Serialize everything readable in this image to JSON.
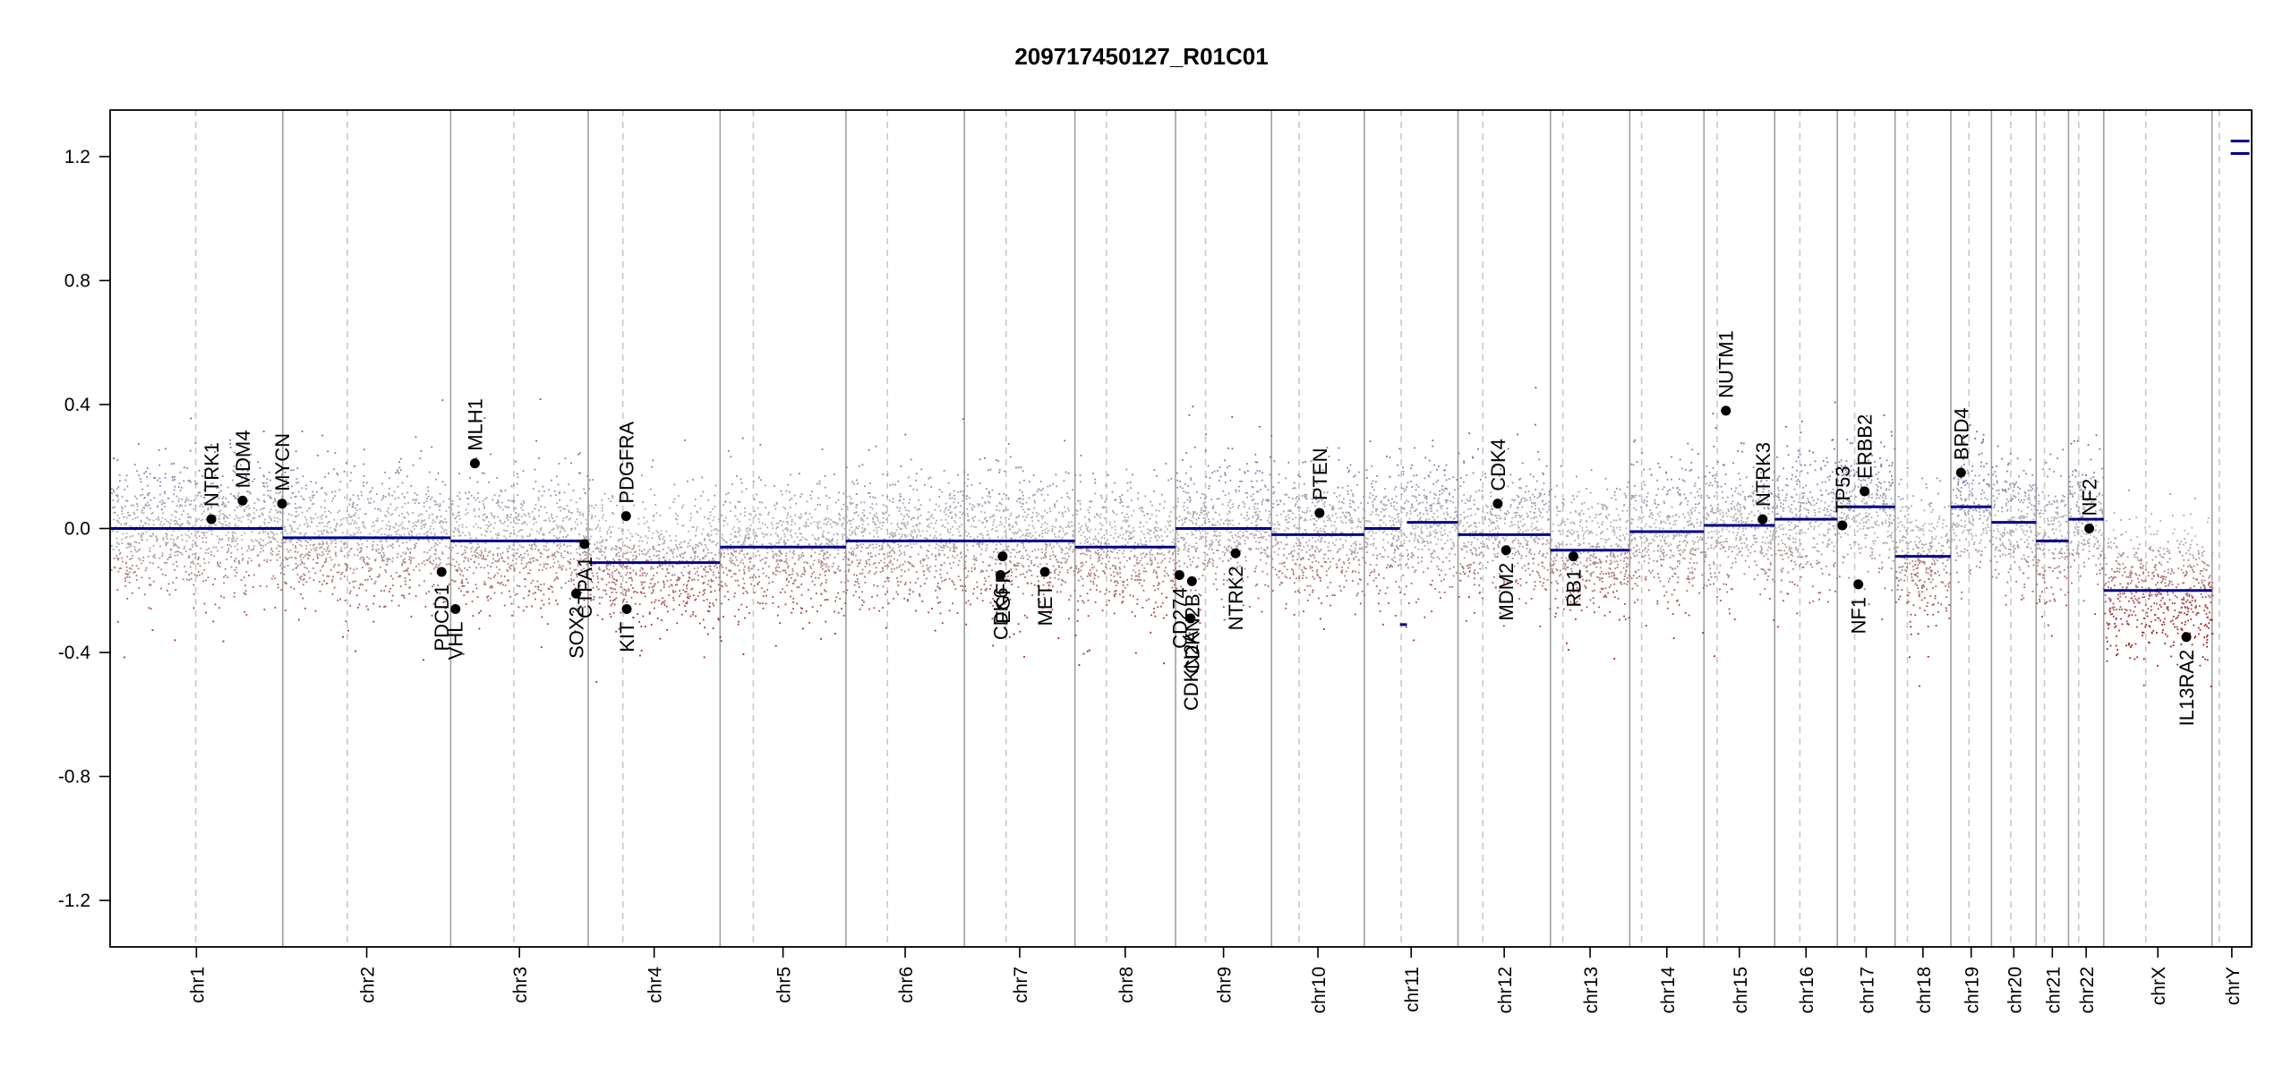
{
  "chart_data": {
    "type": "scatter",
    "title": "209717450127_R01C01",
    "xlabel": "",
    "ylabel": "",
    "ylim": [
      -1.35,
      1.35
    ],
    "yticks": [
      -1.2,
      -0.8,
      -0.4,
      0.0,
      0.4,
      0.8,
      1.2
    ],
    "ytick_labels": [
      "-1.2",
      "-0.8",
      "-0.4",
      "0.0",
      "0.4",
      "0.8",
      "1.2"
    ],
    "grid": false,
    "colors": {
      "segment": "#00008b",
      "gain": "#5a5aa8",
      "neutral": "#b4b4b4",
      "loss": "#a01e1e",
      "chrom_boundary": "#a0a0a0",
      "centromere": "#c8c8c8"
    },
    "chromosomes": [
      {
        "name": "chr1",
        "start": 0.0,
        "end": 248.9,
        "centromere": 123.4
      },
      {
        "name": "chr2",
        "start": 248.9,
        "end": 491.1,
        "centromere": 342.1
      },
      {
        "name": "chr3",
        "start": 491.1,
        "end": 689.4,
        "centromere": 582.1
      },
      {
        "name": "chr4",
        "start": 689.4,
        "end": 879.6,
        "centromere": 739.4
      },
      {
        "name": "chr5",
        "start": 879.6,
        "end": 1061.1,
        "centromere": 927.5
      },
      {
        "name": "chr6",
        "start": 1061.1,
        "end": 1231.9,
        "centromere": 1120.9
      },
      {
        "name": "chr7",
        "start": 1231.9,
        "end": 1391.3,
        "centromere": 1292.0
      },
      {
        "name": "chr8",
        "start": 1391.3,
        "end": 1536.4,
        "centromere": 1436.8
      },
      {
        "name": "chr9",
        "start": 1536.4,
        "end": 1674.8,
        "centromere": 1579.6
      },
      {
        "name": "chr10",
        "start": 1674.8,
        "end": 1808.6,
        "centromere": 1714.6
      },
      {
        "name": "chr11",
        "start": 1808.6,
        "end": 1943.7,
        "centromere": 1861.8
      },
      {
        "name": "chr12",
        "start": 1943.7,
        "end": 2077.0,
        "centromere": 1979.5
      },
      {
        "name": "chr13",
        "start": 2077.0,
        "end": 2191.4,
        "centromere": 2094.9
      },
      {
        "name": "chr14",
        "start": 2191.4,
        "end": 2298.4,
        "centromere": 2208.5
      },
      {
        "name": "chr15",
        "start": 2298.4,
        "end": 2400.4,
        "centromere": 2317.4
      },
      {
        "name": "chr16",
        "start": 2400.4,
        "end": 2490.7,
        "centromere": 2436.7
      },
      {
        "name": "chr17",
        "start": 2490.7,
        "end": 2574.0,
        "centromere": 2515.7
      },
      {
        "name": "chr18",
        "start": 2574.0,
        "end": 2654.4,
        "centromere": 2591.8
      },
      {
        "name": "chr19",
        "start": 2654.4,
        "end": 2713.0,
        "centromere": 2680.6
      },
      {
        "name": "chr20",
        "start": 2713.0,
        "end": 2777.4,
        "centromere": 2740.9
      },
      {
        "name": "chr21",
        "start": 2777.4,
        "end": 2824.1,
        "centromere": 2789.4
      },
      {
        "name": "chr22",
        "start": 2824.1,
        "end": 2874.9,
        "centromere": 2838.8
      },
      {
        "name": "chrX",
        "start": 2874.9,
        "end": 3031.0,
        "centromere": 2935.5
      },
      {
        "name": "chrY",
        "start": 3031.0,
        "end": 3088.2,
        "centromere": 3041.5
      }
    ],
    "segments": [
      {
        "chr": "chr1",
        "start": 0.0,
        "end": 248.9,
        "value": 0.0
      },
      {
        "chr": "chr2",
        "start": 248.9,
        "end": 491.1,
        "value": -0.03
      },
      {
        "chr": "chr3",
        "start": 491.1,
        "end": 689.4,
        "value": -0.04
      },
      {
        "chr": "chr4",
        "start": 689.4,
        "end": 690.4,
        "value": -0.06
      },
      {
        "chr": "chr4",
        "start": 690.4,
        "end": 879.6,
        "value": -0.11
      },
      {
        "chr": "chr5",
        "start": 879.6,
        "end": 1061.1,
        "value": -0.06
      },
      {
        "chr": "chr6",
        "start": 1061.1,
        "end": 1231.9,
        "value": -0.04
      },
      {
        "chr": "chr7",
        "start": 1231.9,
        "end": 1391.3,
        "value": -0.04
      },
      {
        "chr": "chr8",
        "start": 1391.3,
        "end": 1536.4,
        "value": -0.06
      },
      {
        "chr": "chr9",
        "start": 1536.4,
        "end": 1674.8,
        "value": 0.0
      },
      {
        "chr": "chr10",
        "start": 1674.8,
        "end": 1808.6,
        "value": -0.02
      },
      {
        "chr": "chr11",
        "start": 1808.6,
        "end": 1860.0,
        "value": 0.0
      },
      {
        "chr": "chr11",
        "start": 1860.0,
        "end": 1870.0,
        "value": -0.31
      },
      {
        "chr": "chr11",
        "start": 1870.0,
        "end": 1943.7,
        "value": 0.02
      },
      {
        "chr": "chr12",
        "start": 1943.7,
        "end": 2077.0,
        "value": -0.02
      },
      {
        "chr": "chr13",
        "start": 2077.0,
        "end": 2191.4,
        "value": -0.07
      },
      {
        "chr": "chr14",
        "start": 2191.4,
        "end": 2298.4,
        "value": -0.01
      },
      {
        "chr": "chr15",
        "start": 2298.4,
        "end": 2400.4,
        "value": 0.01
      },
      {
        "chr": "chr16",
        "start": 2400.4,
        "end": 2490.7,
        "value": 0.03
      },
      {
        "chr": "chr17",
        "start": 2490.7,
        "end": 2574.0,
        "value": 0.07
      },
      {
        "chr": "chr18",
        "start": 2574.0,
        "end": 2654.4,
        "value": -0.09
      },
      {
        "chr": "chr19",
        "start": 2654.4,
        "end": 2713.0,
        "value": 0.07
      },
      {
        "chr": "chr20",
        "start": 2713.0,
        "end": 2777.4,
        "value": 0.02
      },
      {
        "chr": "chr21",
        "start": 2777.4,
        "end": 2824.1,
        "value": -0.04
      },
      {
        "chr": "chr22",
        "start": 2824.1,
        "end": 2874.9,
        "value": 0.03
      },
      {
        "chr": "chrX",
        "start": 2874.9,
        "end": 3031.0,
        "value": -0.2
      },
      {
        "chr": "chrY",
        "start": 3058.0,
        "end": 3085.0,
        "value": 1.21
      },
      {
        "chr": "chrY",
        "start": 3058.0,
        "end": 3085.0,
        "value": 1.25
      }
    ],
    "genes": [
      {
        "name": "NTRK1",
        "pos": 146.0,
        "value": 0.03,
        "label_side": "above"
      },
      {
        "name": "MDM4",
        "pos": 191.0,
        "value": 0.09,
        "label_side": "above"
      },
      {
        "name": "MYCN",
        "pos": 248.0,
        "value": 0.08,
        "label_side": "above"
      },
      {
        "name": "PDCD1",
        "pos": 478.0,
        "value": -0.14,
        "label_side": "below"
      },
      {
        "name": "VHL",
        "pos": 498.0,
        "value": -0.26,
        "label_side": "below"
      },
      {
        "name": "MLH1",
        "pos": 526.0,
        "value": 0.21,
        "label_side": "above"
      },
      {
        "name": "SOX2",
        "pos": 672.0,
        "value": -0.21,
        "label_side": "below"
      },
      {
        "name": "CTPA1",
        "pos": 684.0,
        "value": -0.05,
        "label_side": "below"
      },
      {
        "name": "PDGFRA",
        "pos": 744.0,
        "value": 0.04,
        "label_side": "above"
      },
      {
        "name": "KIT",
        "pos": 745.0,
        "value": -0.26,
        "label_side": "below"
      },
      {
        "name": "EGFR",
        "pos": 1287.0,
        "value": -0.09,
        "label_side": "below"
      },
      {
        "name": "CDK6",
        "pos": 1284.0,
        "value": -0.15,
        "label_side": "below"
      },
      {
        "name": "MET",
        "pos": 1348.0,
        "value": -0.14,
        "label_side": "below"
      },
      {
        "name": "CD274",
        "pos": 1542.0,
        "value": -0.15,
        "label_side": "below"
      },
      {
        "name": "CDKN2A",
        "pos": 1558.0,
        "value": -0.29,
        "label_side": "below"
      },
      {
        "name": "CDKN2B",
        "pos": 1560.0,
        "value": -0.17,
        "label_side": "below"
      },
      {
        "name": "NTRK2",
        "pos": 1623.0,
        "value": -0.08,
        "label_side": "below"
      },
      {
        "name": "PTEN",
        "pos": 1744.0,
        "value": 0.05,
        "label_side": "above"
      },
      {
        "name": "CDK4",
        "pos": 2001.0,
        "value": 0.08,
        "label_side": "above"
      },
      {
        "name": "MDM2",
        "pos": 2013.0,
        "value": -0.07,
        "label_side": "below"
      },
      {
        "name": "RB1",
        "pos": 2110.0,
        "value": -0.09,
        "label_side": "below"
      },
      {
        "name": "NUTM1",
        "pos": 2330.0,
        "value": 0.38,
        "label_side": "above"
      },
      {
        "name": "NTRK3",
        "pos": 2383.0,
        "value": 0.03,
        "label_side": "above"
      },
      {
        "name": "TP53",
        "pos": 2498.0,
        "value": 0.01,
        "label_side": "above"
      },
      {
        "name": "NF1",
        "pos": 2521.0,
        "value": -0.18,
        "label_side": "below"
      },
      {
        "name": "ERBB2",
        "pos": 2530.0,
        "value": 0.12,
        "label_side": "above"
      },
      {
        "name": "BRD4",
        "pos": 2669.0,
        "value": 0.18,
        "label_side": "above"
      },
      {
        "name": "NF2",
        "pos": 2854.0,
        "value": 0.0,
        "label_side": "above"
      },
      {
        "name": "IL13RA2",
        "pos": 2994.0,
        "value": -0.35,
        "label_side": "below"
      }
    ],
    "scatter_description": {
      "noise_sd": 0.13,
      "points_per_mb": 4
    }
  }
}
